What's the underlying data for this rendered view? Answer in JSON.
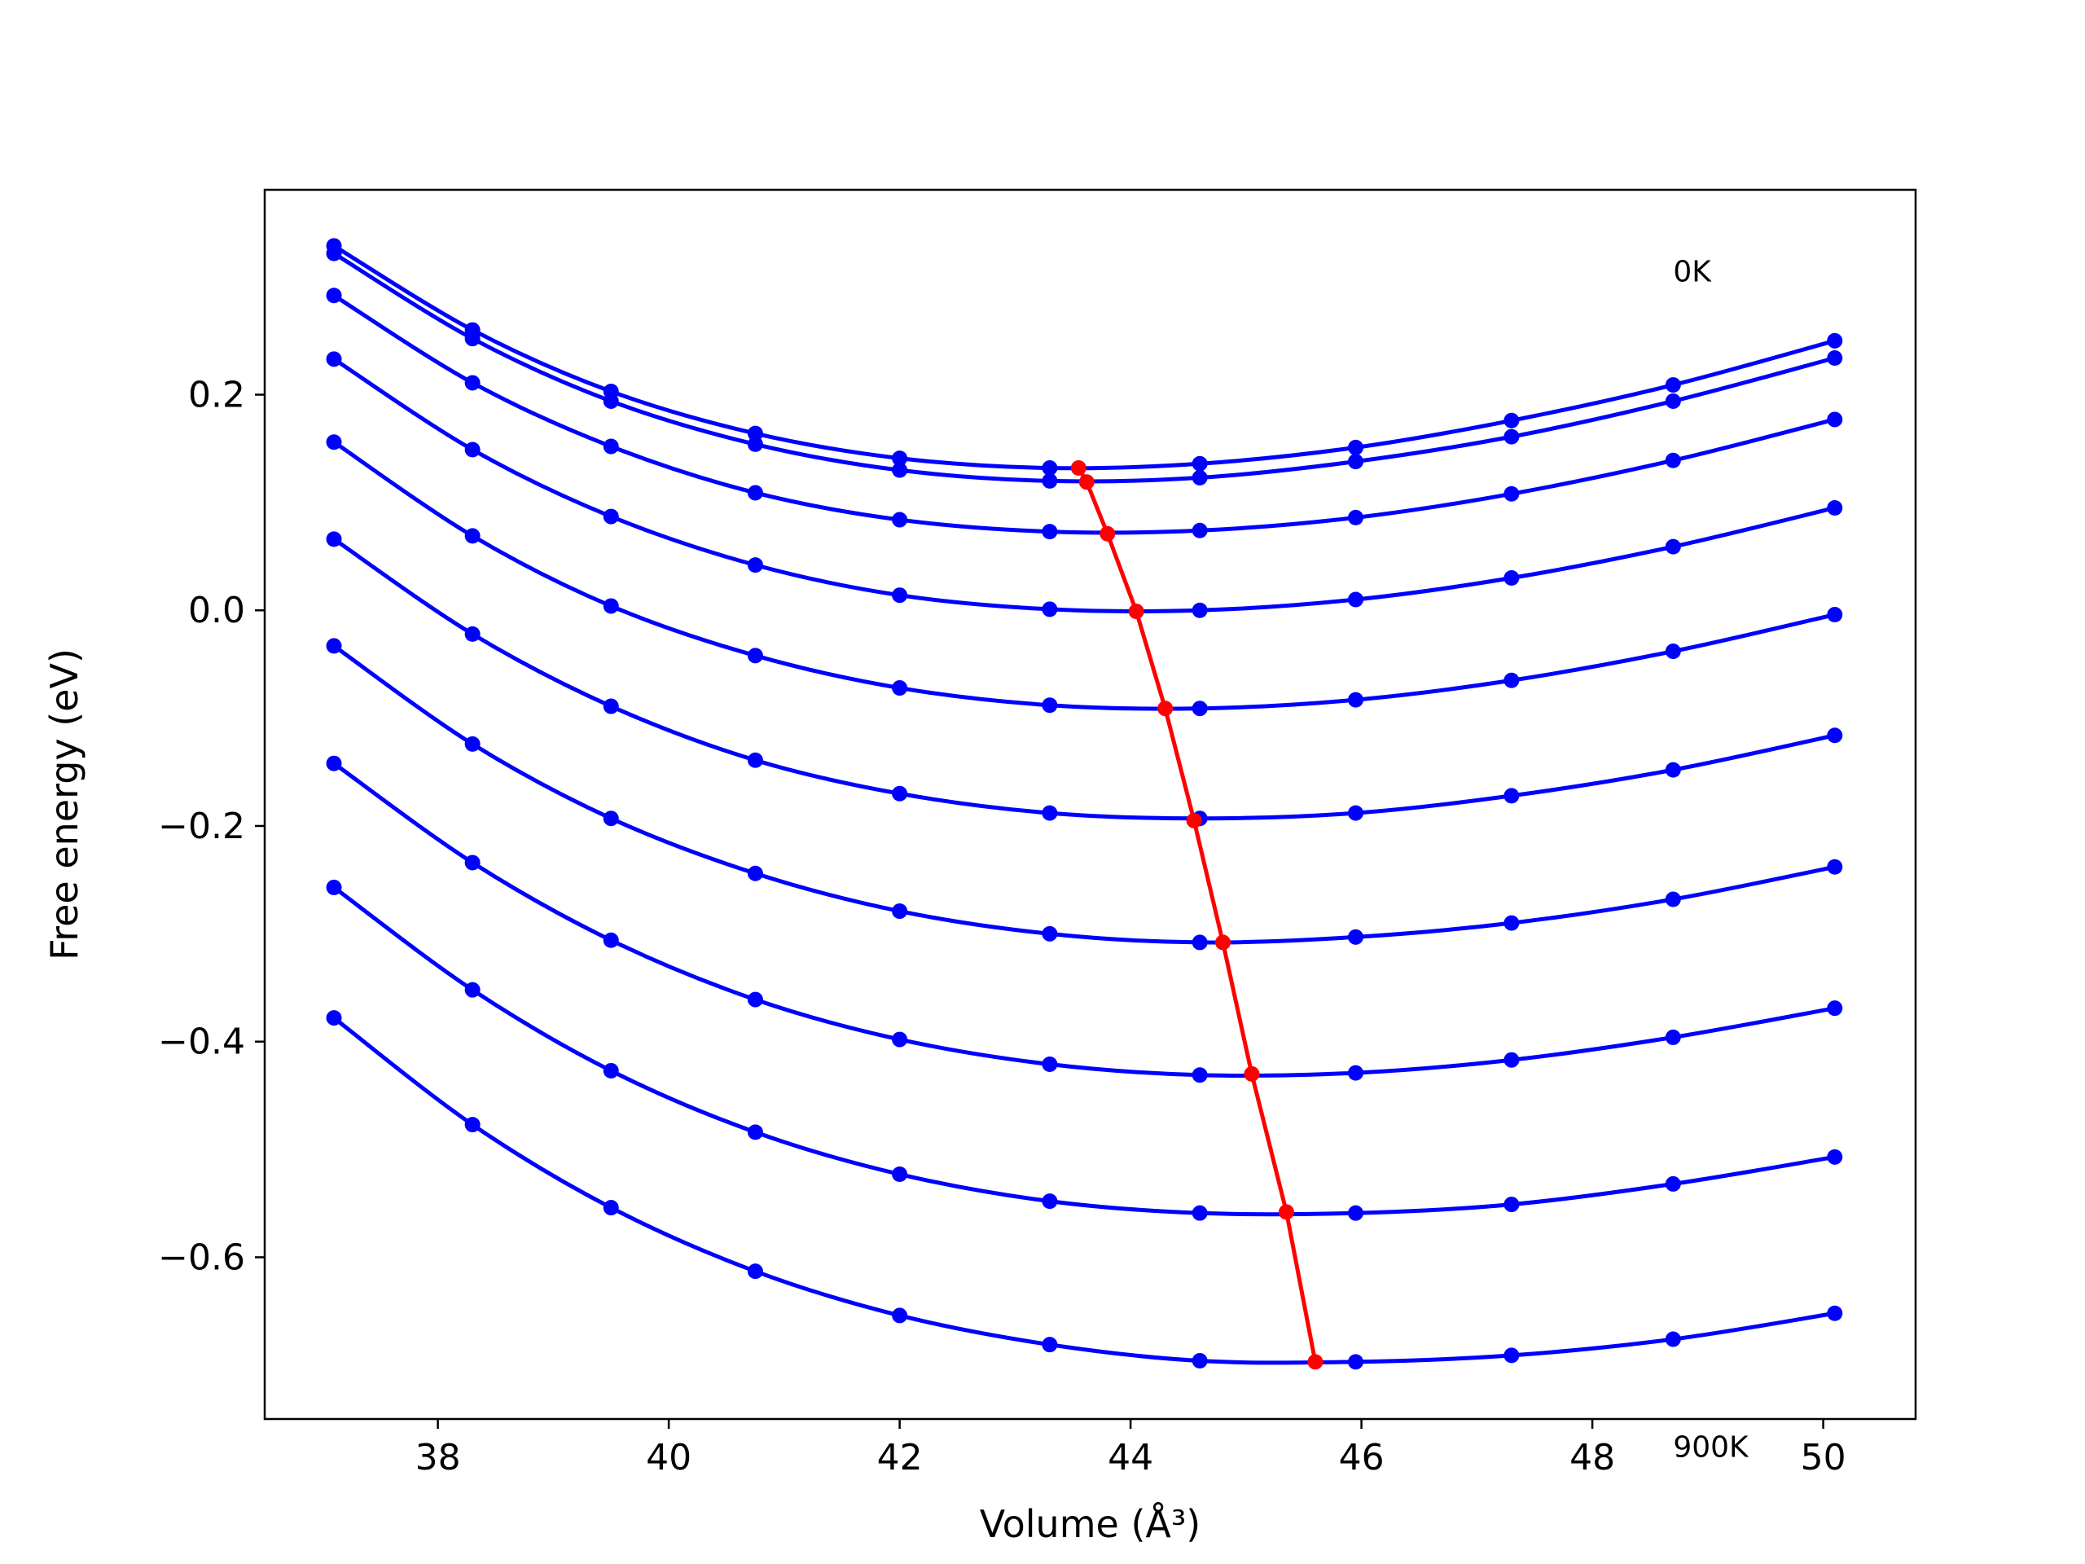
{
  "chart_data": {
    "type": "line",
    "xlabel": "Volume (Å³)",
    "ylabel": "Free energy (eV)",
    "xlim": [
      36.5,
      50.8
    ],
    "ylim": [
      -0.75,
      0.39
    ],
    "xticks": [
      38,
      40,
      42,
      44,
      46,
      48,
      50
    ],
    "yticks": [
      -0.6,
      -0.4,
      -0.2,
      0.0,
      0.2
    ],
    "ytick_labels": [
      "−0.6",
      "−0.4",
      "−0.2",
      "0.0",
      "0.2"
    ],
    "xtick_labels": [
      "38",
      "40",
      "42",
      "44",
      "46",
      "48",
      "50"
    ],
    "grid": false,
    "annotations": [
      {
        "text": "0K",
        "x": 48.7,
        "y": 0.305
      },
      {
        "text": "900K",
        "x": 48.7,
        "y": -0.785
      }
    ],
    "x": [
      37.1,
      38.3,
      39.5,
      40.75,
      42.0,
      43.3,
      44.6,
      45.95,
      47.3,
      48.7,
      50.1
    ],
    "series": [
      {
        "color": "#0000ff",
        "values": [
          0.338,
          0.26,
          0.203,
          0.164,
          0.141,
          0.132,
          0.136,
          0.151,
          0.176,
          0.209,
          0.25
        ]
      },
      {
        "color": "#0000ff",
        "values": [
          0.331,
          0.252,
          0.194,
          0.154,
          0.13,
          0.12,
          0.123,
          0.138,
          0.161,
          0.194,
          0.234
        ]
      },
      {
        "color": "#0000ff",
        "values": [
          0.292,
          0.211,
          0.152,
          0.109,
          0.084,
          0.073,
          0.074,
          0.086,
          0.108,
          0.139,
          0.177
        ]
      },
      {
        "color": "#0000ff",
        "values": [
          0.233,
          0.149,
          0.087,
          0.042,
          0.014,
          0.001,
          0.0,
          0.01,
          0.03,
          0.059,
          0.095
        ]
      },
      {
        "color": "#0000ff",
        "values": [
          0.156,
          0.069,
          0.004,
          -0.042,
          -0.072,
          -0.088,
          -0.091,
          -0.083,
          -0.065,
          -0.038,
          -0.004
        ]
      },
      {
        "color": "#0000ff",
        "values": [
          0.066,
          -0.022,
          -0.089,
          -0.139,
          -0.17,
          -0.188,
          -0.193,
          -0.188,
          -0.172,
          -0.148,
          -0.116
        ]
      },
      {
        "color": "#0000ff",
        "values": [
          -0.033,
          -0.124,
          -0.193,
          -0.244,
          -0.279,
          -0.3,
          -0.308,
          -0.303,
          -0.29,
          -0.268,
          -0.238
        ]
      },
      {
        "color": "#0000ff",
        "values": [
          -0.142,
          -0.234,
          -0.306,
          -0.361,
          -0.398,
          -0.421,
          -0.431,
          -0.429,
          -0.417,
          -0.396,
          -0.369
        ]
      },
      {
        "color": "#0000ff",
        "values": [
          -0.257,
          -0.352,
          -0.427,
          -0.484,
          -0.523,
          -0.548,
          -0.559,
          -0.559,
          -0.551,
          -0.532,
          -0.507
        ]
      },
      {
        "color": "#0000ff",
        "values": [
          -0.378,
          -0.477,
          -0.554,
          -0.613,
          -0.654,
          -0.681,
          -0.696,
          -0.697,
          -0.691,
          -0.676,
          -0.652
        ]
      }
    ],
    "minima": {
      "color": "#ff0000",
      "x": [
        43.55,
        43.62,
        43.8,
        44.05,
        44.3,
        44.55,
        44.8,
        45.05,
        45.35,
        45.6
      ],
      "y": [
        0.132,
        0.119,
        0.071,
        -0.001,
        -0.091,
        -0.195,
        -0.308,
        -0.43,
        -0.558,
        -0.697
      ]
    }
  }
}
